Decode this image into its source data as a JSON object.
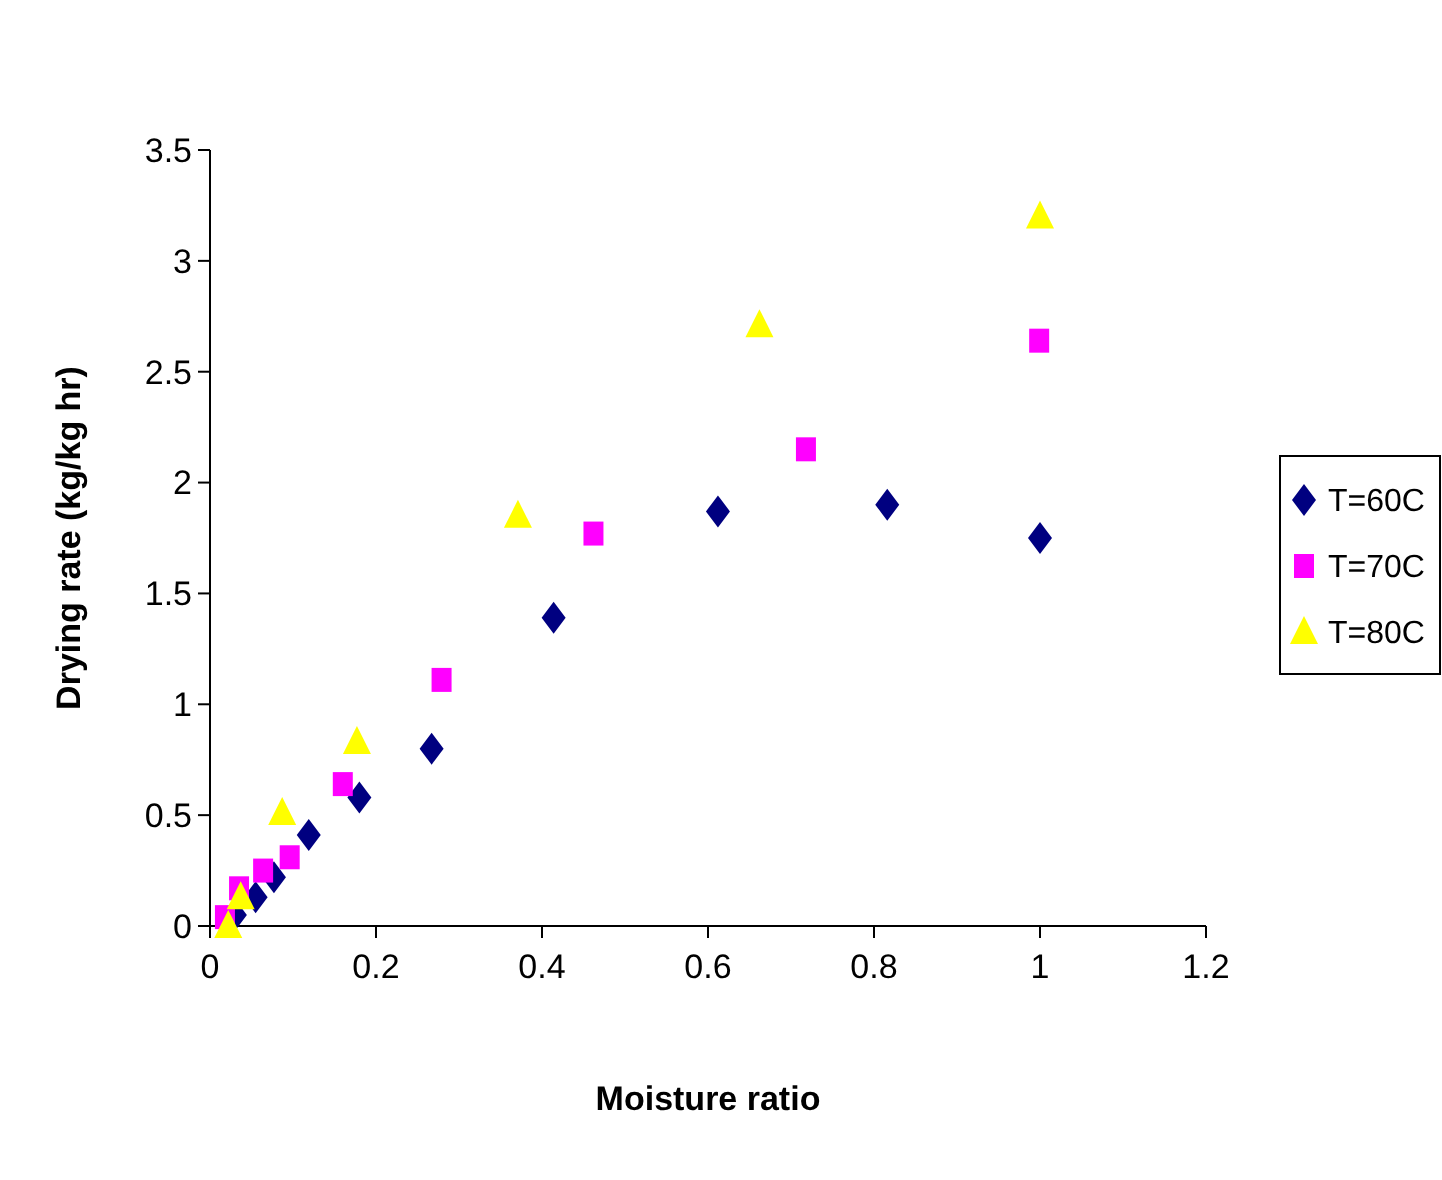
{
  "chart_data": {
    "type": "scatter",
    "xlabel": "Moisture ratio",
    "ylabel": "Drying rate (kg/kg hr)",
    "xlim": [
      0,
      1.2
    ],
    "xticks": [
      0,
      0.2,
      0.4,
      0.6,
      0.8,
      1,
      1.2
    ],
    "ylim": [
      0,
      3.5
    ],
    "yticks": [
      0,
      0.5,
      1,
      1.5,
      2,
      2.5,
      3,
      3.5
    ],
    "grid": false,
    "legend": "right",
    "series": [
      {
        "name": "T=60C",
        "color": "#000080",
        "marker": "diamond",
        "x": [
          0.03,
          0.055,
          0.077,
          0.119,
          0.18,
          0.267,
          0.414,
          0.612,
          0.816,
          1.0
        ],
        "values": [
          0.05,
          0.13,
          0.22,
          0.41,
          0.58,
          0.8,
          1.39,
          1.87,
          1.9,
          1.75
        ]
      },
      {
        "name": "T=70C",
        "color": "#ff00ff",
        "marker": "square",
        "x": [
          0.018,
          0.035,
          0.064,
          0.096,
          0.16,
          0.279,
          0.462,
          0.718,
          0.999
        ],
        "values": [
          0.04,
          0.17,
          0.25,
          0.31,
          0.64,
          1.11,
          1.77,
          2.15,
          2.64
        ]
      },
      {
        "name": "T=80C",
        "color": "#ffff00",
        "marker": "triangle",
        "x": [
          0.022,
          0.037,
          0.087,
          0.177,
          0.371,
          0.662,
          1.0
        ],
        "values": [
          0.0,
          0.13,
          0.51,
          0.83,
          1.85,
          2.71,
          3.2
        ]
      }
    ]
  }
}
